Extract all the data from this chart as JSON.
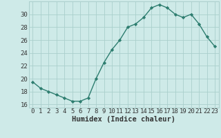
{
  "x": [
    0,
    1,
    2,
    3,
    4,
    5,
    6,
    7,
    8,
    9,
    10,
    11,
    12,
    13,
    14,
    15,
    16,
    17,
    18,
    19,
    20,
    21,
    22,
    23
  ],
  "y": [
    19.5,
    18.5,
    18.0,
    17.5,
    17.0,
    16.5,
    16.5,
    17.0,
    20.0,
    22.5,
    24.5,
    26.0,
    28.0,
    28.5,
    29.5,
    31.0,
    31.5,
    31.0,
    30.0,
    29.5,
    30.0,
    28.5,
    26.5,
    25.0
  ],
  "line_color": "#2d7d6f",
  "marker": "D",
  "marker_size": 2.2,
  "bg_color": "#ceeae8",
  "grid_color": "#aacfcc",
  "tick_color": "#333333",
  "xlabel": "Humidex (Indice chaleur)",
  "xlim": [
    -0.5,
    23.5
  ],
  "ylim": [
    15.5,
    32.0
  ],
  "yticks": [
    16,
    18,
    20,
    22,
    24,
    26,
    28,
    30
  ],
  "xticks": [
    0,
    1,
    2,
    3,
    4,
    5,
    6,
    7,
    8,
    9,
    10,
    11,
    12,
    13,
    14,
    15,
    16,
    17,
    18,
    19,
    20,
    21,
    22,
    23
  ],
  "linewidth": 1.0,
  "tick_fontsize": 6.5,
  "xlabel_fontsize": 7.5
}
